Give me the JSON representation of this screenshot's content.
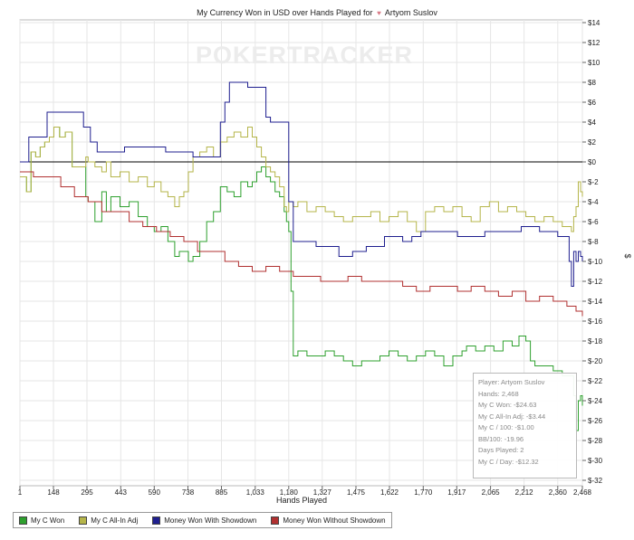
{
  "chart_data": {
    "type": "line",
    "title": "My Currency Won in USD over Hands Played for",
    "player_name": "Artyom Suslov",
    "watermark": "POKERTRACKER",
    "xlabel": "Hands Played",
    "ylabel": "$",
    "xlim": [
      1,
      2468
    ],
    "ylim": [
      -32,
      14
    ],
    "x_ticks": [
      1,
      148,
      295,
      443,
      590,
      738,
      885,
      1033,
      1180,
      1327,
      1475,
      1622,
      1770,
      1917,
      2065,
      2212,
      2360,
      2468
    ],
    "x_tick_labels": [
      "1",
      "148",
      "295",
      "443",
      "590",
      "738",
      "885",
      "1,033",
      "1,180",
      "1,327",
      "1,475",
      "1,622",
      "1,770",
      "1,917",
      "2,065",
      "2,212",
      "2,360",
      "2,468"
    ],
    "y_ticks": [
      14,
      12,
      10,
      8,
      6,
      4,
      2,
      0,
      -2,
      -4,
      -6,
      -8,
      -10,
      -12,
      -14,
      -16,
      -18,
      -20,
      -22,
      -24,
      -26,
      -28,
      -30,
      -32
    ],
    "y_tick_labels": [
      "$14",
      "$12",
      "$10",
      "$8",
      "$6",
      "$4",
      "$2",
      "$0",
      "$-2",
      "$-4",
      "$-6",
      "$-8",
      "$-10",
      "$-12",
      "$-14",
      "$-16",
      "$-18",
      "$-20",
      "$-22",
      "$-24",
      "$-26",
      "$-28",
      "$-30",
      "$-32"
    ],
    "grid": true,
    "legend_position": "bottom-left",
    "series": [
      {
        "name": "My C Won",
        "color": "#2ea02e",
        "x": [
          1,
          30,
          50,
          70,
          90,
          110,
          130,
          150,
          175,
          200,
          230,
          260,
          290,
          300,
          330,
          360,
          380,
          400,
          440,
          480,
          520,
          560,
          590,
          620,
          650,
          680,
          700,
          720,
          740,
          760,
          790,
          820,
          850,
          880,
          910,
          940,
          970,
          1000,
          1020,
          1040,
          1060,
          1080,
          1100,
          1120,
          1140,
          1160,
          1170,
          1180,
          1190,
          1200,
          1220,
          1260,
          1300,
          1340,
          1380,
          1420,
          1460,
          1500,
          1540,
          1580,
          1620,
          1660,
          1700,
          1740,
          1780,
          1820,
          1860,
          1900,
          1940,
          1960,
          2000,
          2040,
          2080,
          2120,
          2160,
          2190,
          2200,
          2220,
          2240,
          2260,
          2300,
          2340,
          2380,
          2420,
          2430,
          2440,
          2450,
          2460,
          2468
        ],
        "y": [
          -1.5,
          -3.0,
          1.0,
          0.5,
          1.5,
          2.0,
          2.5,
          3.5,
          2.5,
          3.0,
          -0.5,
          -0.5,
          -3.5,
          -4.0,
          -6.0,
          -3.0,
          -5.0,
          -3.5,
          -4.5,
          -4.0,
          -5.5,
          -6.5,
          -7.0,
          -6.5,
          -8.0,
          -9.5,
          -9.0,
          -9.0,
          -10.0,
          -9.5,
          -8.0,
          -6.0,
          -5.0,
          -2.5,
          -3.0,
          -3.5,
          -2.0,
          -2.5,
          -2.0,
          -1.0,
          -0.5,
          -1.5,
          -2.0,
          -3.0,
          -3.5,
          -5.0,
          -6.0,
          -7.0,
          -13.0,
          -19.5,
          -19.0,
          -19.5,
          -19.5,
          -19.0,
          -19.5,
          -20.0,
          -20.5,
          -20.0,
          -20.0,
          -19.5,
          -19.0,
          -19.5,
          -20.0,
          -19.5,
          -19.0,
          -19.5,
          -20.5,
          -19.5,
          -19.0,
          -18.5,
          -19.0,
          -18.5,
          -19.0,
          -18.0,
          -18.5,
          -17.5,
          -17.5,
          -18.0,
          -20.0,
          -20.5,
          -20.5,
          -21.0,
          -21.5,
          -21.5,
          -23.5,
          -27.0,
          -24.0,
          -23.5,
          -24.5
        ]
      },
      {
        "name": "My C All-In Adj",
        "color": "#b5b54a",
        "x": [
          1,
          30,
          50,
          70,
          90,
          110,
          130,
          150,
          175,
          200,
          230,
          260,
          290,
          300,
          330,
          360,
          380,
          400,
          440,
          480,
          520,
          560,
          590,
          620,
          650,
          680,
          700,
          720,
          740,
          760,
          790,
          820,
          850,
          880,
          910,
          940,
          970,
          1000,
          1020,
          1040,
          1060,
          1080,
          1100,
          1120,
          1140,
          1160,
          1170,
          1180,
          1200,
          1220,
          1260,
          1300,
          1340,
          1380,
          1420,
          1460,
          1500,
          1540,
          1580,
          1620,
          1660,
          1700,
          1740,
          1780,
          1820,
          1860,
          1900,
          1940,
          1980,
          2020,
          2060,
          2100,
          2140,
          2180,
          2220,
          2260,
          2300,
          2340,
          2380,
          2420,
          2430,
          2440,
          2450,
          2460,
          2468
        ],
        "y": [
          -1.5,
          -3.0,
          1.0,
          0.5,
          1.5,
          2.0,
          2.5,
          3.5,
          2.5,
          3.0,
          -0.5,
          -0.5,
          0.5,
          0.0,
          -0.5,
          -1.0,
          0.0,
          -1.5,
          -1.0,
          -2.0,
          -1.5,
          -2.5,
          -2.0,
          -3.0,
          -3.5,
          -4.5,
          -3.5,
          -3.0,
          -1.0,
          0.5,
          1.0,
          1.5,
          0.5,
          2.0,
          2.5,
          3.0,
          2.5,
          3.5,
          2.5,
          1.5,
          0.5,
          -0.5,
          -1.0,
          -1.5,
          -2.5,
          -4.5,
          -5.0,
          -4.0,
          -4.5,
          -4.0,
          -5.0,
          -4.5,
          -5.0,
          -5.5,
          -6.0,
          -5.5,
          -5.5,
          -5.0,
          -6.0,
          -5.5,
          -5.0,
          -6.0,
          -7.0,
          -5.0,
          -4.5,
          -5.0,
          -4.5,
          -5.5,
          -6.0,
          -4.5,
          -4.0,
          -5.0,
          -4.5,
          -5.0,
          -5.5,
          -6.0,
          -5.5,
          -6.0,
          -6.5,
          -7.0,
          -5.5,
          -4.5,
          -2.0,
          -3.0,
          -3.5
        ]
      },
      {
        "name": "Money Won With Showdown",
        "color": "#1f1f8f",
        "x": [
          1,
          40,
          70,
          120,
          150,
          200,
          250,
          280,
          290,
          310,
          340,
          370,
          400,
          420,
          460,
          520,
          580,
          640,
          700,
          760,
          800,
          880,
          900,
          920,
          960,
          1000,
          1040,
          1080,
          1100,
          1140,
          1180,
          1200,
          1220,
          1260,
          1300,
          1340,
          1400,
          1460,
          1520,
          1560,
          1600,
          1640,
          1680,
          1720,
          1760,
          1800,
          1840,
          1880,
          1920,
          1960,
          2000,
          2040,
          2080,
          2120,
          2160,
          2200,
          2240,
          2280,
          2320,
          2360,
          2400,
          2410,
          2420,
          2430,
          2440,
          2450,
          2460,
          2468
        ],
        "y": [
          0.0,
          2.5,
          2.5,
          5.0,
          5.0,
          5.0,
          5.0,
          3.5,
          3.5,
          2.0,
          1.0,
          1.0,
          1.0,
          1.0,
          1.5,
          1.5,
          1.5,
          1.0,
          1.0,
          0.5,
          0.5,
          4.0,
          6.0,
          8.0,
          8.0,
          7.5,
          7.5,
          4.5,
          4.0,
          4.0,
          -4.0,
          -8.0,
          -8.0,
          -8.0,
          -8.5,
          -8.5,
          -9.5,
          -9.0,
          -8.5,
          -8.5,
          -7.5,
          -7.5,
          -8.0,
          -7.5,
          -7.0,
          -7.0,
          -7.0,
          -7.0,
          -7.5,
          -7.5,
          -7.5,
          -7.0,
          -7.0,
          -7.0,
          -7.0,
          -6.5,
          -6.5,
          -7.0,
          -7.0,
          -7.5,
          -7.5,
          -10.0,
          -12.5,
          -9.0,
          -10.0,
          -9.0,
          -9.5,
          -10.0
        ]
      },
      {
        "name": "Money Won Without Showdown",
        "color": "#b03030",
        "x": [
          1,
          60,
          120,
          180,
          240,
          300,
          360,
          420,
          480,
          540,
          600,
          660,
          720,
          780,
          840,
          900,
          960,
          1020,
          1080,
          1140,
          1200,
          1260,
          1320,
          1380,
          1440,
          1500,
          1560,
          1620,
          1680,
          1740,
          1800,
          1860,
          1920,
          1980,
          2040,
          2100,
          2160,
          2220,
          2280,
          2340,
          2400,
          2440,
          2468
        ],
        "y": [
          -1.0,
          -1.5,
          -1.5,
          -2.5,
          -3.5,
          -4.0,
          -5.0,
          -5.0,
          -6.0,
          -6.5,
          -7.0,
          -7.5,
          -8.0,
          -9.0,
          -9.0,
          -10.0,
          -10.5,
          -11.0,
          -10.5,
          -11.0,
          -11.5,
          -11.5,
          -12.0,
          -12.0,
          -11.5,
          -12.0,
          -12.0,
          -12.0,
          -12.5,
          -13.0,
          -12.5,
          -12.5,
          -13.0,
          -12.5,
          -13.0,
          -13.5,
          -13.0,
          -14.0,
          -13.5,
          -14.0,
          -14.5,
          -15.0,
          -15.5
        ]
      }
    ]
  },
  "legend": {
    "items": [
      {
        "label": "My C Won",
        "color": "#2ea02e"
      },
      {
        "label": "My C All-In Adj",
        "color": "#b5b54a"
      },
      {
        "label": "Money Won With Showdown",
        "color": "#1f1f8f"
      },
      {
        "label": "Money Won Without Showdown",
        "color": "#b03030"
      }
    ]
  },
  "stats": {
    "player": "Player: Artyom Suslov",
    "hands": "Hands: 2,468",
    "won": "My C Won: -$24.63",
    "allin": "My C All-In Adj: -$3.44",
    "per100": "My C / 100: -$1.00",
    "bb100": "BB/100: -19.96",
    "days": "Days Played: 2",
    "perday": "My C / Day: -$12.32"
  }
}
